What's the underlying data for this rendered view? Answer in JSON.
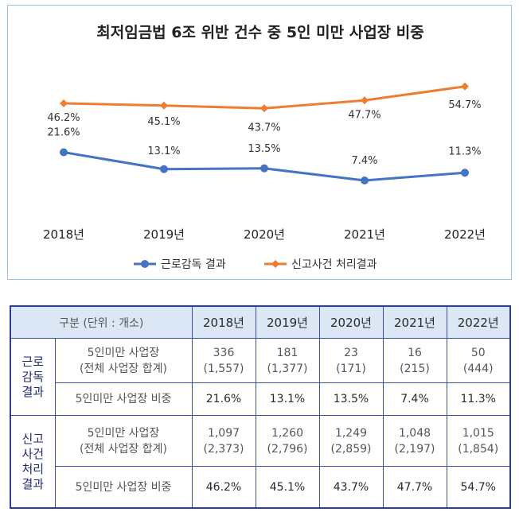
{
  "chart_data": {
    "type": "line",
    "title": "최저임금법 6조 위반 건수 중 5인 미만 사업장 비중",
    "categories": [
      "2018년",
      "2019년",
      "2020년",
      "2021년",
      "2022년"
    ],
    "series": [
      {
        "name": "근로감독 결과",
        "values": [
          21.6,
          13.1,
          13.5,
          7.4,
          11.3
        ],
        "labels": [
          "21.6%",
          "13.1%",
          "13.5%",
          "7.4%",
          "11.3%"
        ],
        "color": "#4472c4",
        "marker": "circle"
      },
      {
        "name": "신고사건 처리결과",
        "values": [
          46.2,
          45.1,
          43.7,
          47.7,
          54.7
        ],
        "labels": [
          "46.2%",
          "45.1%",
          "43.7%",
          "47.7%",
          "54.7%"
        ],
        "color": "#ed7d31",
        "marker": "diamond"
      }
    ],
    "grid": false,
    "legend": "bottom"
  },
  "table": {
    "corner_label": "구분 (단위 : 개소)",
    "years": [
      "2018년",
      "2019년",
      "2020년",
      "2021년",
      "2022년"
    ],
    "groups": [
      {
        "label_lines": [
          "근로",
          "감독",
          "결과"
        ],
        "count_label_lines": [
          "5인미만 사업장",
          "(전체 사업장 합계)"
        ],
        "counts": [
          {
            "count": "336",
            "total": "(1,557)"
          },
          {
            "count": "181",
            "total": "(1,377)"
          },
          {
            "count": "23",
            "total": "(171)"
          },
          {
            "count": "16",
            "total": "(215)"
          },
          {
            "count": "50",
            "total": "(444)"
          }
        ],
        "ratio_label": "5인미만 사업장 비중",
        "ratios": [
          "21.6%",
          "13.1%",
          "13.5%",
          "7.4%",
          "11.3%"
        ]
      },
      {
        "label_lines": [
          "신고",
          "사건",
          "처리",
          "결과"
        ],
        "count_label_lines": [
          "5인미만 사업장",
          "(전체 사업장 합계)"
        ],
        "counts": [
          {
            "count": "1,097",
            "total": "(2,373)"
          },
          {
            "count": "1,260",
            "total": "(2,796)"
          },
          {
            "count": "1,249",
            "total": "(2,859)"
          },
          {
            "count": "1,048",
            "total": "(2,197)"
          },
          {
            "count": "1,015",
            "total": "(1,854)"
          }
        ],
        "ratio_label": "5인미만 사업장 비중",
        "ratios": [
          "46.2%",
          "45.1%",
          "43.7%",
          "47.7%",
          "54.7%"
        ]
      }
    ]
  }
}
